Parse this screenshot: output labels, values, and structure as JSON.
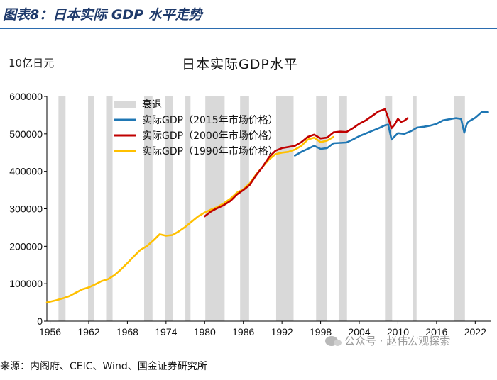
{
  "figure": {
    "title": "图表8：日本实际 GDP 水平走势",
    "source": "来源：内阁府、CEIC、Wind、国金证券研究所",
    "watermark": "公众号 · 赵伟宏观探索"
  },
  "chart_data": {
    "type": "line",
    "title": "日本实际GDP水平",
    "unit_label": "10亿日元",
    "xlabel": "",
    "ylabel": "",
    "xlim": [
      1955.5,
      2024.5
    ],
    "ylim": [
      0,
      600000
    ],
    "yticks": [
      0,
      100000,
      200000,
      300000,
      400000,
      500000,
      600000
    ],
    "ytick_labels": [
      "0",
      "100000",
      "200000",
      "300000",
      "400000",
      "500000",
      "600000"
    ],
    "xticks": [
      1956,
      1962,
      1968,
      1974,
      1980,
      1986,
      1992,
      1998,
      2004,
      2010,
      2016,
      2022
    ],
    "xtick_labels": [
      "1956",
      "1962",
      "1968",
      "1974",
      "1980",
      "1986",
      "1992",
      "1998",
      "2004",
      "2010",
      "2016",
      "2022"
    ],
    "legend_position": "top-left",
    "recessions": {
      "name": "衰退",
      "color": "#d9d9d9",
      "periods": [
        [
          1957.3,
          1958.4
        ],
        [
          1961.9,
          1962.8
        ],
        [
          1964.7,
          1965.7
        ],
        [
          1970.6,
          1971.9
        ],
        [
          1973.8,
          1975.1
        ],
        [
          1977.0,
          1977.8
        ],
        [
          1980.1,
          1983.1
        ],
        [
          1985.5,
          1986.9
        ],
        [
          1991.1,
          1993.8
        ],
        [
          1997.3,
          1999.0
        ],
        [
          2000.8,
          2002.1
        ],
        [
          2008.0,
          2009.1
        ],
        [
          2012.3,
          2012.9
        ],
        [
          2018.7,
          2020.4
        ]
      ]
    },
    "series": [
      {
        "name": "实际GDP（1990年市场价格）",
        "color": "#ffc000",
        "x": [
          1955.5,
          1957,
          1958,
          1959,
          1960,
          1961,
          1962,
          1963,
          1964,
          1965,
          1966,
          1967,
          1968,
          1969,
          1970,
          1971,
          1972,
          1973,
          1974,
          1975,
          1976,
          1977,
          1978,
          1979,
          1980,
          1981,
          1982,
          1983,
          1984,
          1985,
          1986,
          1987,
          1988,
          1989,
          1990,
          1991,
          1992,
          1993,
          1994,
          1995,
          1996,
          1997,
          1998,
          1999,
          2000
        ],
        "values": [
          50000,
          56000,
          61000,
          67000,
          76000,
          85000,
          90000,
          98000,
          107000,
          112000,
          123000,
          138000,
          155000,
          173000,
          190000,
          200000,
          215000,
          232000,
          228000,
          230000,
          240000,
          252000,
          266000,
          280000,
          290000,
          298000,
          305000,
          315000,
          327000,
          343000,
          352000,
          368000,
          392000,
          412000,
          432000,
          446000,
          450000,
          452000,
          458000,
          468000,
          485000,
          490000,
          478000,
          482000,
          492000
        ]
      },
      {
        "name": "实际GDP（2000年市场价格）",
        "color": "#c00000",
        "x": [
          1980,
          1981,
          1982,
          1983,
          1984,
          1985,
          1986,
          1987,
          1988,
          1989,
          1990,
          1991,
          1992,
          1993,
          1994,
          1995,
          1996,
          1997,
          1998,
          1999,
          2000,
          2001,
          2002,
          2003,
          2004,
          2005,
          2006,
          2007,
          2008,
          2008.5,
          2009,
          2009.5,
          2010,
          2010.5,
          2011,
          2011.5
        ],
        "values": [
          280000,
          293000,
          302000,
          310000,
          321000,
          338000,
          350000,
          364000,
          390000,
          412000,
          438000,
          455000,
          462000,
          465000,
          468000,
          478000,
          492000,
          498000,
          488000,
          490000,
          504000,
          506000,
          505000,
          515000,
          527000,
          536000,
          548000,
          560000,
          566000,
          542000,
          515000,
          525000,
          540000,
          532000,
          535000,
          542000
        ]
      },
      {
        "name": "实际GDP（2015年市场价格）",
        "color": "#1f77b4",
        "x": [
          1994,
          1995,
          1996,
          1997,
          1998,
          1999,
          2000,
          2001,
          2002,
          2003,
          2004,
          2005,
          2006,
          2007,
          2008,
          2008.5,
          2009,
          2010,
          2011,
          2012,
          2013,
          2014,
          2015,
          2016,
          2017,
          2018,
          2019,
          2019.8,
          2020.3,
          2020.7,
          2021,
          2022,
          2023,
          2024
        ],
        "values": [
          442000,
          452000,
          460000,
          468000,
          460000,
          462000,
          475000,
          476000,
          477000,
          485000,
          494000,
          501000,
          508000,
          515000,
          523000,
          525000,
          485000,
          502000,
          500000,
          507000,
          517000,
          519000,
          522000,
          527000,
          536000,
          539000,
          542000,
          540000,
          503000,
          527000,
          533000,
          543000,
          558000,
          558000
        ]
      }
    ]
  }
}
